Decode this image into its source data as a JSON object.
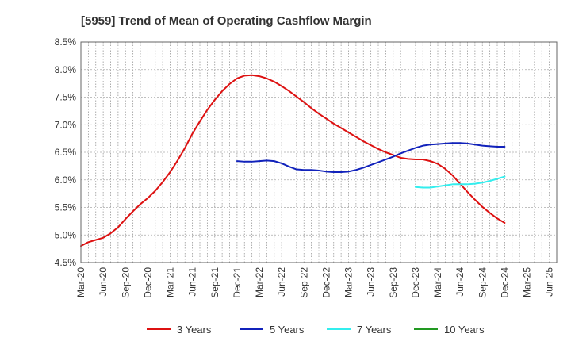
{
  "chart_data": {
    "type": "line",
    "title": "[5959]  Trend of Mean of Operating Cashflow Margin",
    "xlabel": "",
    "ylabel": "",
    "ylim": [
      4.5,
      8.5
    ],
    "y_ticks": [
      "8.5%",
      "8.0%",
      "7.5%",
      "7.0%",
      "6.5%",
      "6.0%",
      "5.5%",
      "5.0%",
      "4.5%"
    ],
    "y_tick_values": [
      8.5,
      8.0,
      7.5,
      7.0,
      6.5,
      6.0,
      5.5,
      5.0,
      4.5
    ],
    "x_ticks": [
      "Mar-20",
      "Jun-20",
      "Sep-20",
      "Dec-20",
      "Mar-21",
      "Jun-21",
      "Sep-21",
      "Dec-21",
      "Mar-22",
      "Jun-22",
      "Sep-22",
      "Dec-22",
      "Mar-23",
      "Jun-23",
      "Sep-23",
      "Dec-23",
      "Mar-24",
      "Jun-24",
      "Sep-24",
      "Dec-24",
      "Mar-25",
      "Jun-25"
    ],
    "x_months": 64,
    "grid": true,
    "legend_position": "bottom",
    "series": [
      {
        "name": "3 Years",
        "color": "#dd1111",
        "points": [
          [
            0,
            4.8
          ],
          [
            1,
            4.87
          ],
          [
            2,
            4.91
          ],
          [
            3,
            4.95
          ],
          [
            4,
            5.03
          ],
          [
            5,
            5.14
          ],
          [
            6,
            5.29
          ],
          [
            7,
            5.43
          ],
          [
            8,
            5.56
          ],
          [
            9,
            5.67
          ],
          [
            10,
            5.8
          ],
          [
            11,
            5.96
          ],
          [
            12,
            6.14
          ],
          [
            13,
            6.35
          ],
          [
            14,
            6.58
          ],
          [
            15,
            6.84
          ],
          [
            16,
            7.06
          ],
          [
            17,
            7.27
          ],
          [
            18,
            7.45
          ],
          [
            19,
            7.61
          ],
          [
            20,
            7.74
          ],
          [
            21,
            7.84
          ],
          [
            22,
            7.89
          ],
          [
            23,
            7.9
          ],
          [
            24,
            7.88
          ],
          [
            25,
            7.84
          ],
          [
            26,
            7.78
          ],
          [
            27,
            7.7
          ],
          [
            28,
            7.61
          ],
          [
            29,
            7.51
          ],
          [
            30,
            7.41
          ],
          [
            31,
            7.3
          ],
          [
            32,
            7.2
          ],
          [
            33,
            7.11
          ],
          [
            34,
            7.02
          ],
          [
            35,
            6.94
          ],
          [
            36,
            6.86
          ],
          [
            37,
            6.78
          ],
          [
            38,
            6.7
          ],
          [
            39,
            6.63
          ],
          [
            40,
            6.56
          ],
          [
            41,
            6.5
          ],
          [
            42,
            6.45
          ],
          [
            43,
            6.4
          ],
          [
            44,
            6.38
          ],
          [
            45,
            6.37
          ],
          [
            46,
            6.37
          ],
          [
            47,
            6.34
          ],
          [
            48,
            6.29
          ],
          [
            49,
            6.2
          ],
          [
            50,
            6.08
          ],
          [
            51,
            5.93
          ],
          [
            52,
            5.78
          ],
          [
            53,
            5.64
          ],
          [
            54,
            5.51
          ],
          [
            55,
            5.4
          ],
          [
            56,
            5.3
          ],
          [
            57,
            5.22
          ]
        ]
      },
      {
        "name": "5 Years",
        "color": "#1122bb",
        "points": [
          [
            21,
            6.34
          ],
          [
            22,
            6.33
          ],
          [
            23,
            6.33
          ],
          [
            24,
            6.34
          ],
          [
            25,
            6.35
          ],
          [
            26,
            6.34
          ],
          [
            27,
            6.3
          ],
          [
            28,
            6.24
          ],
          [
            29,
            6.19
          ],
          [
            30,
            6.18
          ],
          [
            31,
            6.18
          ],
          [
            32,
            6.17
          ],
          [
            33,
            6.15
          ],
          [
            34,
            6.14
          ],
          [
            35,
            6.14
          ],
          [
            36,
            6.15
          ],
          [
            37,
            6.18
          ],
          [
            38,
            6.22
          ],
          [
            39,
            6.27
          ],
          [
            40,
            6.32
          ],
          [
            41,
            6.37
          ],
          [
            42,
            6.42
          ],
          [
            43,
            6.48
          ],
          [
            44,
            6.53
          ],
          [
            45,
            6.58
          ],
          [
            46,
            6.62
          ],
          [
            47,
            6.64
          ],
          [
            48,
            6.65
          ],
          [
            49,
            6.66
          ],
          [
            50,
            6.67
          ],
          [
            51,
            6.67
          ],
          [
            52,
            6.66
          ],
          [
            53,
            6.64
          ],
          [
            54,
            6.62
          ],
          [
            55,
            6.61
          ],
          [
            56,
            6.6
          ],
          [
            57,
            6.6
          ]
        ]
      },
      {
        "name": "7 Years",
        "color": "#33eeee",
        "points": [
          [
            45,
            5.87
          ],
          [
            46,
            5.86
          ],
          [
            47,
            5.86
          ],
          [
            48,
            5.88
          ],
          [
            49,
            5.9
          ],
          [
            50,
            5.92
          ],
          [
            51,
            5.92
          ],
          [
            52,
            5.92
          ],
          [
            53,
            5.93
          ],
          [
            54,
            5.95
          ],
          [
            55,
            5.98
          ],
          [
            56,
            6.02
          ],
          [
            57,
            6.06
          ]
        ]
      },
      {
        "name": "10 Years",
        "color": "#229922",
        "points": []
      }
    ]
  }
}
